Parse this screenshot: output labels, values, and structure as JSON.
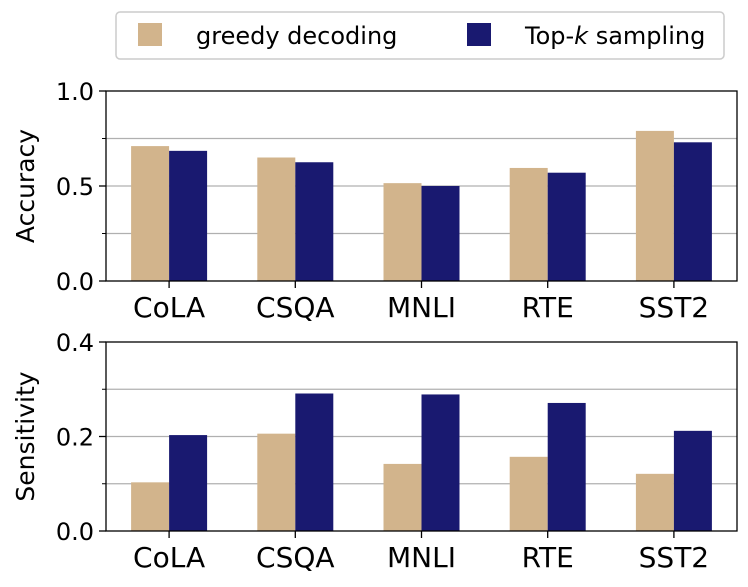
{
  "legend": {
    "items": [
      {
        "label_pre": "greedy decoding",
        "label_italic": "",
        "label_post": "",
        "color": "#D2B48C"
      },
      {
        "label_pre": "Top-",
        "label_italic": "k",
        "label_post": " sampling",
        "color": "#191970"
      }
    ]
  },
  "chart_data": [
    {
      "type": "bar",
      "categories": [
        "CoLA",
        "CSQA",
        "MNLI",
        "RTE",
        "SST2"
      ],
      "series": [
        {
          "name": "greedy decoding",
          "values": [
            0.71,
            0.65,
            0.515,
            0.595,
            0.79
          ],
          "color": "#D2B48C"
        },
        {
          "name": "Top-k sampling",
          "values": [
            0.685,
            0.625,
            0.5,
            0.57,
            0.73
          ],
          "color": "#191970"
        }
      ],
      "ylabel": "Accuracy",
      "ylim": [
        0,
        1.0
      ],
      "yticks": [
        0.0,
        0.5,
        1.0
      ],
      "ytick_labels": [
        "0.0",
        "0.5",
        "1.0"
      ],
      "minor_yticks": [
        0.25,
        0.75
      ],
      "grid": true
    },
    {
      "type": "bar",
      "categories": [
        "CoLA",
        "CSQA",
        "MNLI",
        "RTE",
        "SST2"
      ],
      "series": [
        {
          "name": "greedy decoding",
          "values": [
            0.103,
            0.206,
            0.142,
            0.157,
            0.121
          ],
          "color": "#D2B48C"
        },
        {
          "name": "Top-k sampling",
          "values": [
            0.203,
            0.291,
            0.289,
            0.271,
            0.212
          ],
          "color": "#191970"
        }
      ],
      "ylabel": "Sensitivity",
      "ylim": [
        0,
        0.4
      ],
      "yticks": [
        0.0,
        0.2,
        0.4
      ],
      "ytick_labels": [
        "0.0",
        "0.2",
        "0.4"
      ],
      "minor_yticks": [
        0.1,
        0.3
      ],
      "grid": true
    }
  ]
}
